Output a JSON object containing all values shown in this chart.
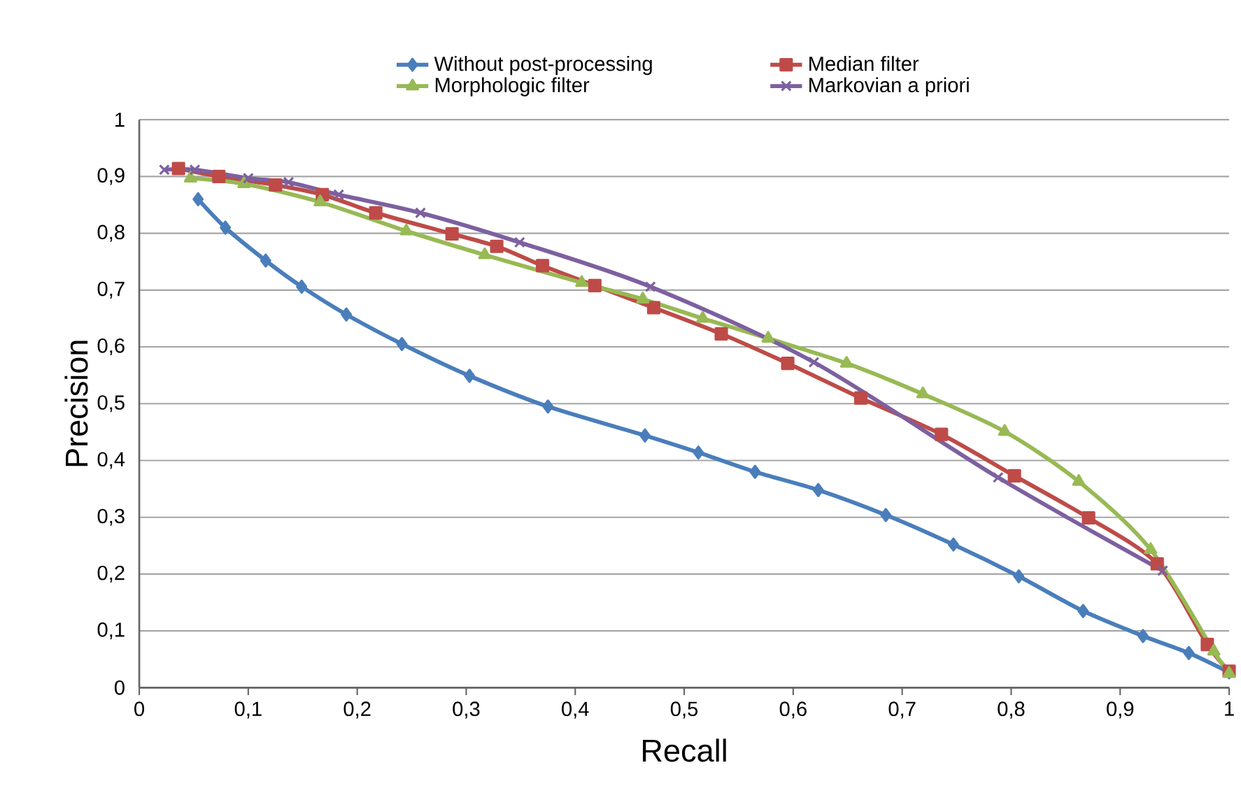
{
  "chart_data": {
    "type": "line",
    "xlabel": "Recall",
    "ylabel": "Precision",
    "xlim": [
      0,
      1
    ],
    "ylim": [
      0,
      1
    ],
    "xticks": [
      0,
      {
        "value": 0.1,
        "label": "0,1"
      },
      {
        "value": 0.2,
        "label": "0,2"
      },
      {
        "value": 0.3,
        "label": "0,3"
      },
      {
        "value": 0.4,
        "label": "0,4"
      },
      {
        "value": 0.5,
        "label": "0,5"
      },
      {
        "value": 0.6,
        "label": "0,6"
      },
      {
        "value": 0.7,
        "label": "0,7"
      },
      {
        "value": 0.8,
        "label": "0,8"
      },
      {
        "value": 0.9,
        "label": "0,9"
      },
      1
    ],
    "yticks": [
      0,
      {
        "value": 0.1,
        "label": "0,1"
      },
      {
        "value": 0.2,
        "label": "0,2"
      },
      {
        "value": 0.3,
        "label": "0,3"
      },
      {
        "value": 0.4,
        "label": "0,4"
      },
      {
        "value": 0.5,
        "label": "0,5"
      },
      {
        "value": 0.6,
        "label": "0,6"
      },
      {
        "value": 0.7,
        "label": "0,7"
      },
      {
        "value": 0.8,
        "label": "0,8"
      },
      {
        "value": 0.9,
        "label": "0,9"
      },
      1
    ],
    "grid": "y",
    "legend": "top",
    "line_style": "solid",
    "series": [
      {
        "name": "Without post-processing",
        "color": "#4a7ebb",
        "marker": "diamond",
        "x": [
          0.054,
          0.079,
          0.116,
          0.149,
          0.19,
          0.241,
          0.303,
          0.375,
          0.464,
          0.513,
          0.565,
          0.623,
          0.685,
          0.747,
          0.807,
          0.866,
          0.921,
          0.963,
          1.0
        ],
        "values": [
          0.86,
          0.81,
          0.752,
          0.706,
          0.657,
          0.605,
          0.549,
          0.495,
          0.444,
          0.414,
          0.38,
          0.348,
          0.304,
          0.252,
          0.196,
          0.135,
          0.091,
          0.061,
          0.027
        ]
      },
      {
        "name": "Median filter",
        "color": "#be4b48",
        "marker": "square",
        "x": [
          0.036,
          0.073,
          0.125,
          0.168,
          0.217,
          0.287,
          0.328,
          0.37,
          0.418,
          0.472,
          0.534,
          0.595,
          0.662,
          0.736,
          0.803,
          0.871,
          0.934,
          0.98,
          1.0
        ],
        "values": [
          0.914,
          0.9,
          0.885,
          0.868,
          0.836,
          0.799,
          0.777,
          0.743,
          0.708,
          0.669,
          0.623,
          0.571,
          0.51,
          0.446,
          0.373,
          0.299,
          0.218,
          0.076,
          0.029
        ]
      },
      {
        "name": "Morphologic filter",
        "color": "#98b954",
        "marker": "triangle",
        "x": [
          0.047,
          0.096,
          0.166,
          0.245,
          0.317,
          0.406,
          0.462,
          0.517,
          0.577,
          0.649,
          0.719,
          0.794,
          0.862,
          0.928,
          0.986,
          1.0
        ],
        "values": [
          0.897,
          0.887,
          0.855,
          0.804,
          0.762,
          0.713,
          0.684,
          0.65,
          0.615,
          0.571,
          0.517,
          0.451,
          0.363,
          0.243,
          0.064,
          0.025
        ]
      },
      {
        "name": "Markovian a priori",
        "color": "#7d60a0",
        "marker": "cross",
        "x": [
          0.023,
          0.051,
          0.1,
          0.137,
          0.183,
          0.258,
          0.349,
          0.469,
          0.619,
          0.788,
          0.939
        ],
        "values": [
          0.912,
          0.912,
          0.897,
          0.89,
          0.868,
          0.836,
          0.784,
          0.706,
          0.573,
          0.37,
          0.206
        ]
      }
    ]
  }
}
